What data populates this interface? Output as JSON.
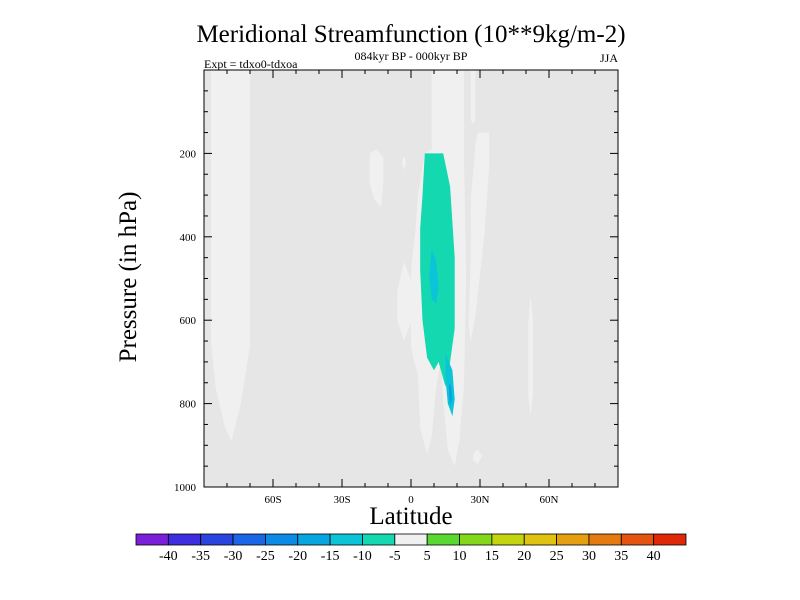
{
  "chart_data": {
    "type": "heatmap",
    "title": "Meridional Streamfunction (10**9kg/m-2)",
    "subtitle_center": "084kyr BP - 000kyr BP",
    "subtitle_left": "Expt = tdxo0-tdxoa",
    "subtitle_right": "JJA",
    "xlabel": "Latitude",
    "ylabel": "Pressure (in hPa)",
    "xlim": [
      -90,
      90
    ],
    "ylim": [
      1000,
      0
    ],
    "x_ticks": [
      {
        "value": -60,
        "label": "60S"
      },
      {
        "value": -30,
        "label": "30S"
      },
      {
        "value": 0,
        "label": "0"
      },
      {
        "value": 30,
        "label": "30N"
      },
      {
        "value": 60,
        "label": "60N"
      }
    ],
    "y_ticks": [
      {
        "value": 200,
        "label": "200"
      },
      {
        "value": 400,
        "label": "400"
      },
      {
        "value": 600,
        "label": "600"
      },
      {
        "value": 800,
        "label": "800"
      },
      {
        "value": 1000,
        "label": "1000"
      }
    ],
    "background_color": "#e6e6e6",
    "colorbar": {
      "levels": [
        -40,
        -35,
        -30,
        -25,
        -20,
        -15,
        -10,
        -5,
        5,
        10,
        15,
        20,
        25,
        30,
        35,
        40
      ],
      "colors": [
        "#7b1fd8",
        "#3f2ee0",
        "#2a44e0",
        "#1a66e6",
        "#0c8be6",
        "#07a6e0",
        "#0cc4d8",
        "#13d8b0",
        "#f0f0f0",
        "#58d830",
        "#84d81c",
        "#c4d510",
        "#e0c210",
        "#e4a010",
        "#e47a10",
        "#e45410",
        "#e02808"
      ]
    },
    "regions": [
      {
        "level": -5,
        "polygon": [
          [
            -87,
            0
          ],
          [
            -70,
            0
          ],
          [
            -70,
            660
          ],
          [
            -74,
            800
          ],
          [
            -78,
            890
          ],
          [
            -81,
            855
          ],
          [
            -85,
            760
          ],
          [
            -87,
            650
          ]
        ]
      },
      {
        "level": 5,
        "polygon": [
          [
            -18,
            200
          ],
          [
            -15,
            190
          ],
          [
            -12,
            210
          ],
          [
            -12,
            270
          ],
          [
            -13,
            330
          ],
          [
            -16,
            310
          ],
          [
            -18,
            270
          ]
        ]
      },
      {
        "level": -5,
        "polygon": [
          [
            -4,
            220
          ],
          [
            -3,
            205
          ],
          [
            -2,
            225
          ],
          [
            -3,
            240
          ]
        ]
      },
      {
        "level": -5,
        "polygon": [
          [
            -6,
            530
          ],
          [
            -3,
            460
          ],
          [
            1,
            520
          ],
          [
            1,
            590
          ],
          [
            -3,
            650
          ],
          [
            -6,
            600
          ]
        ]
      },
      {
        "level": -5,
        "polygon": [
          [
            9,
            0
          ],
          [
            23,
            0
          ],
          [
            23,
            200
          ],
          [
            24,
            500
          ],
          [
            23,
            760
          ],
          [
            21,
            890
          ],
          [
            19,
            950
          ],
          [
            16,
            910
          ],
          [
            14,
            790
          ],
          [
            13,
            700
          ],
          [
            11,
            760
          ],
          [
            9,
            880
          ],
          [
            7,
            920
          ],
          [
            4,
            860
          ],
          [
            3,
            730
          ],
          [
            1,
            690
          ],
          [
            0,
            660
          ],
          [
            0,
            480
          ],
          [
            1,
            430
          ],
          [
            2,
            380
          ],
          [
            3,
            300
          ],
          [
            6,
            200
          ],
          [
            9,
            190
          ]
        ]
      },
      {
        "level": -10,
        "polygon": [
          [
            6,
            200
          ],
          [
            14,
            200
          ],
          [
            17,
            280
          ],
          [
            19,
            450
          ],
          [
            19,
            620
          ],
          [
            17,
            700
          ],
          [
            15,
            760
          ],
          [
            12,
            700
          ],
          [
            10,
            720
          ],
          [
            7,
            690
          ],
          [
            5,
            600
          ],
          [
            4,
            480
          ],
          [
            4,
            380
          ],
          [
            5,
            300
          ]
        ]
      },
      {
        "level": -15,
        "polygon": [
          [
            9,
            430
          ],
          [
            11,
            460
          ],
          [
            12,
            520
          ],
          [
            11,
            560
          ],
          [
            9,
            550
          ],
          [
            8,
            490
          ]
        ]
      },
      {
        "level": -15,
        "polygon": [
          [
            15,
            680
          ],
          [
            18,
            720
          ],
          [
            19,
            790
          ],
          [
            18,
            830
          ],
          [
            16,
            800
          ],
          [
            15,
            740
          ]
        ]
      },
      {
        "level": -20,
        "polygon": [
          [
            16.5,
            750
          ],
          [
            17.5,
            760
          ],
          [
            18,
            790
          ],
          [
            17,
            805
          ],
          [
            16.5,
            780
          ]
        ]
      },
      {
        "level": -5,
        "polygon": [
          [
            26,
            0
          ],
          [
            28,
            0
          ],
          [
            28,
            120
          ],
          [
            27,
            130
          ],
          [
            26,
            120
          ]
        ]
      },
      {
        "level": 5,
        "polygon": [
          [
            26,
            310
          ],
          [
            28,
            180
          ],
          [
            29,
            150
          ],
          [
            34,
            150
          ],
          [
            34,
            230
          ],
          [
            32,
            390
          ],
          [
            28,
            590
          ],
          [
            26,
            650
          ],
          [
            25,
            610
          ],
          [
            26,
            450
          ]
        ]
      },
      {
        "level": 5,
        "polygon": [
          [
            27,
            920
          ],
          [
            29,
            910
          ],
          [
            31,
            925
          ],
          [
            29,
            945
          ],
          [
            27,
            935
          ]
        ]
      },
      {
        "level": 5,
        "polygon": [
          [
            51,
            610
          ],
          [
            52,
            540
          ],
          [
            53,
            600
          ],
          [
            53,
            780
          ],
          [
            52,
            830
          ],
          [
            51,
            780
          ]
        ]
      }
    ]
  }
}
